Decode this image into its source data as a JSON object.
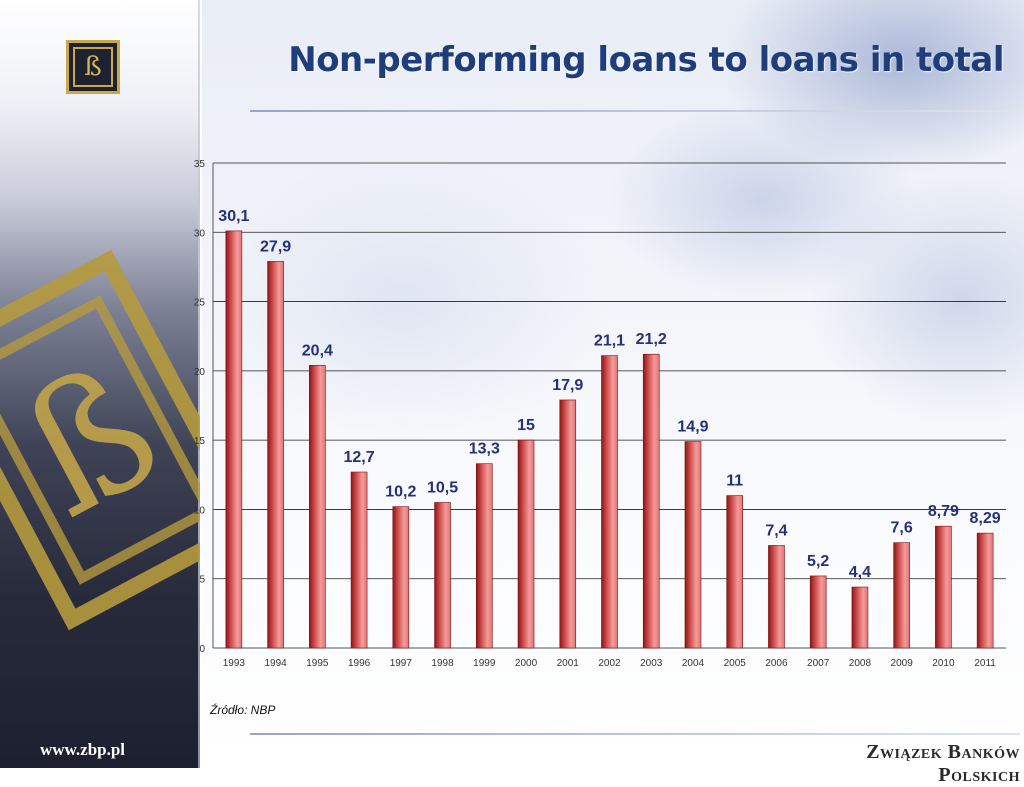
{
  "title": "Non-performing loans to loans in total",
  "source": "Źródło: NBP",
  "site_url": "www.zbp.pl",
  "brand": "Związek Banków Polskich",
  "logo_glyph": "ß",
  "colors": {
    "title": "#1f3d7a",
    "bar_light": "#f28a8a",
    "bar_dark": "#8e1616",
    "data_label": "#26307a",
    "logo_gold": "#c7a84a"
  },
  "chart_data": {
    "type": "bar",
    "categories": [
      "1993",
      "1994",
      "1995",
      "1996",
      "1997",
      "1998",
      "1999",
      "2000",
      "2001",
      "2002",
      "2003",
      "2004",
      "2005",
      "2006",
      "2007",
      "2008",
      "2009",
      "2010",
      "2011"
    ],
    "values": [
      30.1,
      27.9,
      20.4,
      12.7,
      10.2,
      10.5,
      13.3,
      15,
      17.9,
      21.1,
      21.2,
      14.9,
      11,
      7.4,
      5.2,
      4.4,
      7.6,
      8.79,
      8.29
    ],
    "data_labels": [
      "30,1",
      "27,9",
      "20,4",
      "12,7",
      "10,2",
      "10,5",
      "13,3",
      "15",
      "17,9",
      "21,1",
      "21,2",
      "14,9",
      "11",
      "7,4",
      "5,2",
      "4,4",
      "7,6",
      "8,79",
      "8,29"
    ],
    "ylim": [
      0,
      35
    ],
    "yticks": [
      0,
      5,
      10,
      15,
      20,
      25,
      30,
      35
    ],
    "grid": true,
    "xlabel": "",
    "ylabel": "",
    "legend": "none"
  }
}
